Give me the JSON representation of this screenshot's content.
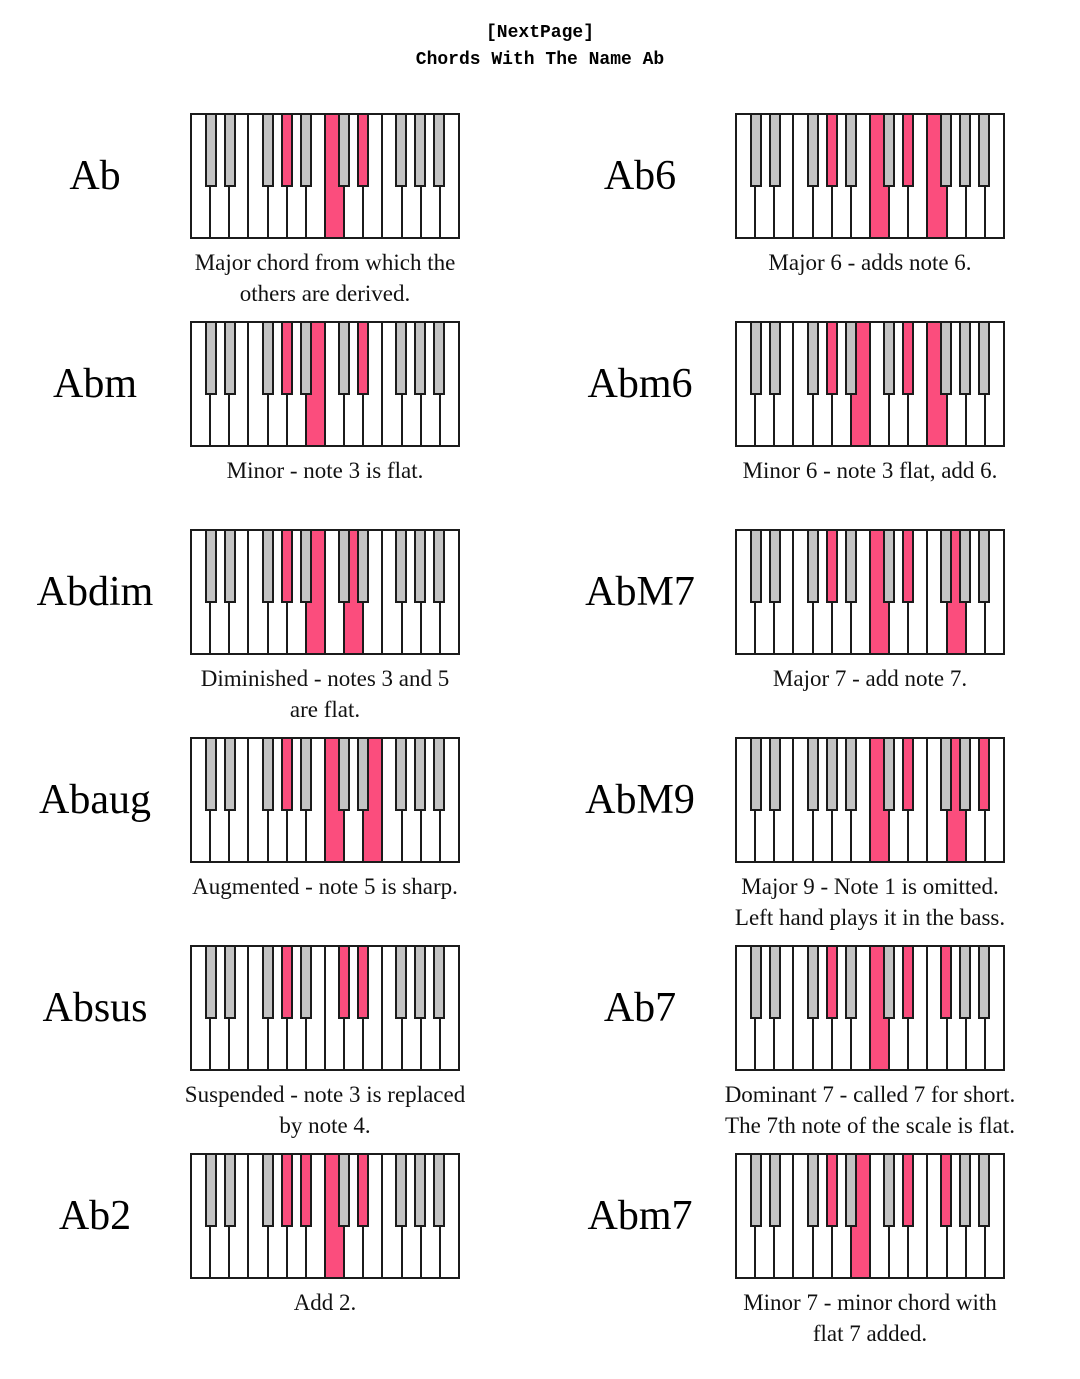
{
  "header": {
    "line1": "[NextPage]",
    "line2": "Chords With The Name Ab"
  },
  "colors": {
    "highlight": "#fb4d7d",
    "black_key": "#c3c3c3",
    "key_border": "#1b1b1b",
    "text": "#111111"
  },
  "keyboard": {
    "white_notes": [
      "C1",
      "D1",
      "E1",
      "F1",
      "G1",
      "A1",
      "B1",
      "C2",
      "D2",
      "E2",
      "F2",
      "G2",
      "A2",
      "B2"
    ],
    "black_notes": [
      {
        "note": "C#1",
        "boundary": 1
      },
      {
        "note": "D#1",
        "boundary": 2
      },
      {
        "note": "F#1",
        "boundary": 4
      },
      {
        "note": "G#1",
        "boundary": 5
      },
      {
        "note": "A#1",
        "boundary": 6
      },
      {
        "note": "C#2",
        "boundary": 8
      },
      {
        "note": "D#2",
        "boundary": 9
      },
      {
        "note": "F#2",
        "boundary": 11
      },
      {
        "note": "G#2",
        "boundary": 12
      },
      {
        "note": "A#2",
        "boundary": 13
      }
    ]
  },
  "chords": [
    {
      "name": "Ab",
      "caption_lines": [
        "Major chord from which the",
        "others are derived."
      ],
      "highlight_white": [
        "C2"
      ],
      "highlight_black": [
        "G#1",
        "D#2"
      ]
    },
    {
      "name": "Ab6",
      "caption_lines": [
        "Major 6 - adds note 6."
      ],
      "highlight_white": [
        "C2",
        "F2"
      ],
      "highlight_black": [
        "G#1",
        "D#2"
      ]
    },
    {
      "name": "Abm",
      "caption_lines": [
        "Minor - note 3 is flat."
      ],
      "highlight_white": [
        "B1"
      ],
      "highlight_black": [
        "G#1",
        "D#2"
      ]
    },
    {
      "name": "Abm6",
      "caption_lines": [
        "Minor 6 - note 3 flat, add 6."
      ],
      "highlight_white": [
        "B1",
        "F2"
      ],
      "highlight_black": [
        "G#1",
        "D#2"
      ]
    },
    {
      "name": "Abdim",
      "caption_lines": [
        "Diminished - notes 3 and 5",
        "are flat."
      ],
      "highlight_white": [
        "B1",
        "D2"
      ],
      "highlight_black": [
        "G#1"
      ]
    },
    {
      "name": "AbM7",
      "caption_lines": [
        "Major 7 - add note 7."
      ],
      "highlight_white": [
        "C2",
        "G2"
      ],
      "highlight_black": [
        "G#1",
        "D#2"
      ]
    },
    {
      "name": "Abaug",
      "caption_lines": [
        "Augmented - note 5 is sharp."
      ],
      "highlight_white": [
        "C2",
        "E2"
      ],
      "highlight_black": [
        "G#1"
      ]
    },
    {
      "name": "AbM9",
      "caption_lines": [
        "Major 9 - Note 1 is omitted.",
        "Left hand plays it in the bass."
      ],
      "highlight_white": [
        "C2",
        "G2"
      ],
      "highlight_black": [
        "D#2",
        "A#2"
      ]
    },
    {
      "name": "Absus",
      "caption_lines": [
        "Suspended - note 3 is replaced",
        "by note 4."
      ],
      "highlight_white": [],
      "highlight_black": [
        "G#1",
        "C#2",
        "D#2"
      ]
    },
    {
      "name": "Ab7",
      "caption_lines": [
        "Dominant 7 - called 7 for short.",
        "The 7th note of the scale is flat."
      ],
      "highlight_white": [
        "C2"
      ],
      "highlight_black": [
        "G#1",
        "D#2",
        "F#2"
      ]
    },
    {
      "name": "Ab2",
      "caption_lines": [
        "Add 2."
      ],
      "highlight_white": [
        "C2"
      ],
      "highlight_black": [
        "G#1",
        "A#1",
        "D#2"
      ]
    },
    {
      "name": "Abm7",
      "caption_lines": [
        "Minor 7 - minor chord with",
        "flat 7 added."
      ],
      "highlight_white": [
        "B1"
      ],
      "highlight_black": [
        "G#1",
        "D#2",
        "F#2"
      ]
    }
  ]
}
